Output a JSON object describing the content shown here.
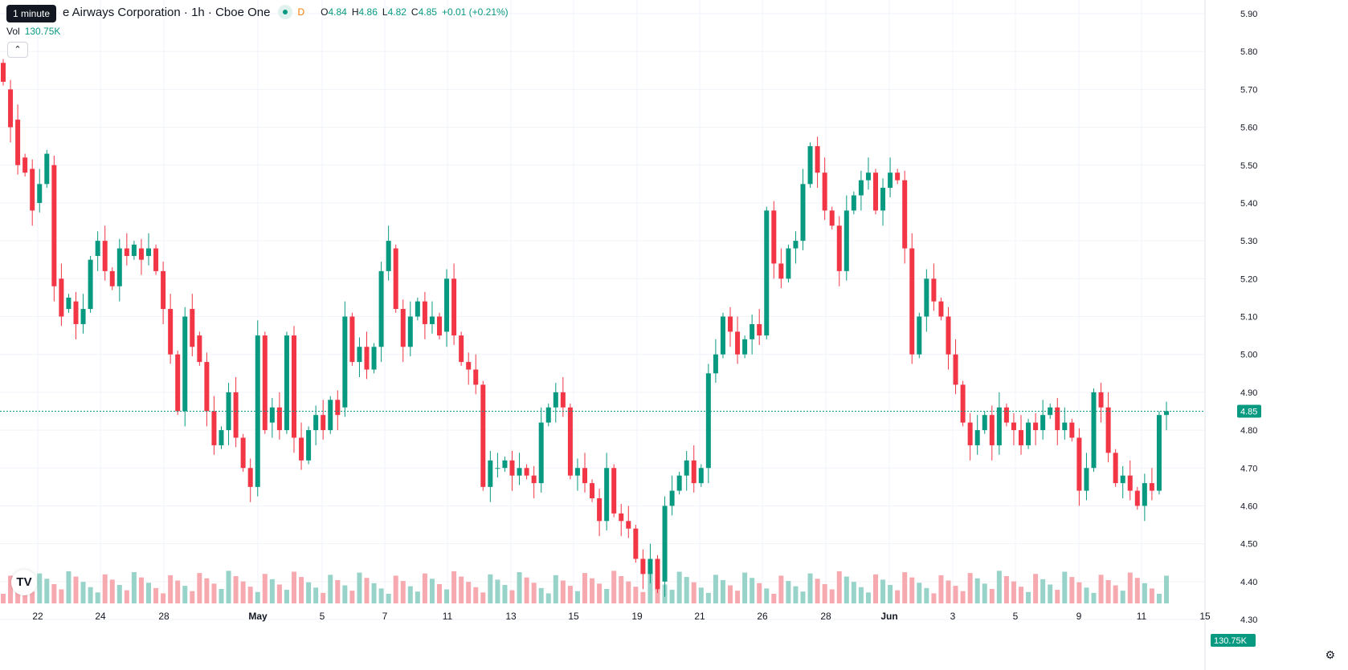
{
  "legend": {
    "title": "e Airways Corporation · 1h · Cboe One",
    "tooltip": "1 minute",
    "d_label": "D",
    "o_label": "O",
    "o_value": "4.84",
    "h_label": "H",
    "h_value": "4.86",
    "l_label": "L",
    "l_value": "4.82",
    "c_label": "C",
    "c_value": "4.85",
    "change": "+0.01 (+0.21%)"
  },
  "volume": {
    "label": "Vol",
    "value": "130.75K"
  },
  "collapse_icon": "chevron-up-icon",
  "logo_icon": "tradingview-logo-icon",
  "settings_icon": "gear-icon",
  "colors": {
    "up": "#089981",
    "down": "#f23645",
    "up_vol": "#98d3c9",
    "down_vol": "#f7a9b0",
    "grid": "#f0f3fa",
    "price_line": "#089981"
  },
  "chart_data": {
    "type": "candlestick",
    "y_axis": {
      "min": 4.3,
      "max": 5.9,
      "ticks": [
        "5.90",
        "5.80",
        "5.70",
        "5.60",
        "5.50",
        "5.40",
        "5.30",
        "5.20",
        "5.10",
        "5.00",
        "4.90",
        "4.80",
        "4.70",
        "4.60",
        "4.50",
        "4.40",
        "4.30"
      ]
    },
    "x_ticks": [
      {
        "label": "22",
        "bold": false
      },
      {
        "label": "24",
        "bold": false
      },
      {
        "label": "28",
        "bold": false
      },
      {
        "label": "May",
        "bold": true
      },
      {
        "label": "5",
        "bold": false
      },
      {
        "label": "7",
        "bold": false
      },
      {
        "label": "11",
        "bold": false
      },
      {
        "label": "13",
        "bold": false
      },
      {
        "label": "15",
        "bold": false
      },
      {
        "label": "19",
        "bold": false
      },
      {
        "label": "21",
        "bold": false
      },
      {
        "label": "26",
        "bold": false
      },
      {
        "label": "28",
        "bold": false
      },
      {
        "label": "Jun",
        "bold": true
      },
      {
        "label": "3",
        "bold": false
      },
      {
        "label": "5",
        "bold": false
      },
      {
        "label": "9",
        "bold": false
      },
      {
        "label": "11",
        "bold": false
      },
      {
        "label": "15",
        "bold": false
      }
    ],
    "current_price": "4.85",
    "current_volume": "130.75K",
    "segments": [
      [
        5.77,
        5.72
      ],
      [
        5.7,
        5.6
      ],
      [
        5.62,
        5.5
      ],
      [
        5.52,
        5.48
      ],
      [
        5.49,
        5.38
      ],
      [
        5.4,
        5.45
      ],
      [
        5.45,
        5.53
      ],
      [
        5.5,
        5.18
      ],
      [
        5.2,
        5.1
      ],
      [
        5.12,
        5.15
      ],
      [
        5.14,
        5.08
      ],
      [
        5.08,
        5.12
      ],
      [
        5.12,
        5.25
      ],
      [
        5.26,
        5.3
      ],
      [
        5.3,
        5.22
      ],
      [
        5.22,
        5.18
      ],
      [
        5.18,
        5.28
      ],
      [
        5.28,
        5.26
      ],
      [
        5.26,
        5.29
      ],
      [
        5.28,
        5.25
      ],
      [
        5.26,
        5.28
      ],
      [
        5.28,
        5.22
      ],
      [
        5.22,
        5.12
      ],
      [
        5.12,
        5.0
      ],
      [
        5.0,
        4.85
      ],
      [
        4.85,
        5.1
      ],
      [
        5.12,
        5.02
      ],
      [
        5.05,
        4.98
      ],
      [
        4.98,
        4.85
      ],
      [
        4.85,
        4.76
      ],
      [
        4.76,
        4.8
      ],
      [
        4.8,
        4.9
      ],
      [
        4.9,
        4.78
      ],
      [
        4.78,
        4.7
      ],
      [
        4.7,
        4.65
      ],
      [
        4.65,
        5.05
      ],
      [
        5.05,
        4.8
      ],
      [
        4.82,
        4.86
      ],
      [
        4.86,
        4.8
      ],
      [
        4.8,
        5.05
      ],
      [
        5.05,
        4.78
      ],
      [
        4.78,
        4.72
      ],
      [
        4.72,
        4.8
      ],
      [
        4.8,
        4.84
      ],
      [
        4.84,
        4.8
      ],
      [
        4.8,
        4.88
      ],
      [
        4.88,
        4.84
      ],
      [
        4.86,
        5.1
      ],
      [
        5.1,
        4.98
      ],
      [
        4.98,
        5.02
      ],
      [
        5.02,
        4.96
      ],
      [
        4.96,
        5.02
      ],
      [
        5.02,
        5.22
      ],
      [
        5.22,
        5.3
      ],
      [
        5.28,
        5.12
      ],
      [
        5.12,
        5.02
      ],
      [
        5.02,
        5.1
      ],
      [
        5.1,
        5.14
      ],
      [
        5.14,
        5.08
      ],
      [
        5.08,
        5.1
      ],
      [
        5.1,
        5.05
      ],
      [
        5.06,
        5.2
      ],
      [
        5.2,
        5.05
      ],
      [
        5.05,
        4.98
      ],
      [
        4.98,
        4.96
      ],
      [
        4.96,
        4.92
      ],
      [
        4.92,
        4.65
      ],
      [
        4.65,
        4.72
      ],
      [
        4.7,
        4.7
      ],
      [
        4.7,
        4.72
      ],
      [
        4.72,
        4.68
      ],
      [
        4.68,
        4.7
      ],
      [
        4.7,
        4.68
      ],
      [
        4.68,
        4.66
      ],
      [
        4.66,
        4.82
      ],
      [
        4.82,
        4.86
      ],
      [
        4.86,
        4.9
      ],
      [
        4.9,
        4.86
      ],
      [
        4.86,
        4.68
      ],
      [
        4.68,
        4.7
      ],
      [
        4.7,
        4.66
      ],
      [
        4.66,
        4.62
      ],
      [
        4.62,
        4.56
      ],
      [
        4.56,
        4.7
      ],
      [
        4.7,
        4.58
      ],
      [
        4.58,
        4.56
      ],
      [
        4.56,
        4.54
      ],
      [
        4.54,
        4.46
      ],
      [
        4.46,
        4.42
      ],
      [
        4.42,
        4.46
      ],
      [
        4.46,
        4.38
      ],
      [
        4.4,
        4.6
      ],
      [
        4.6,
        4.64
      ],
      [
        4.64,
        4.68
      ],
      [
        4.68,
        4.72
      ],
      [
        4.72,
        4.66
      ],
      [
        4.66,
        4.7
      ],
      [
        4.7,
        4.95
      ],
      [
        4.95,
        5.0
      ],
      [
        5.0,
        5.1
      ],
      [
        5.1,
        5.06
      ],
      [
        5.06,
        5.0
      ],
      [
        5.0,
        5.04
      ],
      [
        5.04,
        5.08
      ],
      [
        5.08,
        5.05
      ],
      [
        5.05,
        5.38
      ],
      [
        5.38,
        5.24
      ],
      [
        5.24,
        5.2
      ],
      [
        5.2,
        5.28
      ],
      [
        5.28,
        5.3
      ],
      [
        5.3,
        5.45
      ],
      [
        5.45,
        5.55
      ],
      [
        5.55,
        5.48
      ],
      [
        5.48,
        5.38
      ],
      [
        5.38,
        5.34
      ],
      [
        5.34,
        5.22
      ],
      [
        5.22,
        5.38
      ],
      [
        5.38,
        5.42
      ],
      [
        5.42,
        5.46
      ],
      [
        5.46,
        5.48
      ],
      [
        5.48,
        5.38
      ],
      [
        5.38,
        5.44
      ],
      [
        5.44,
        5.48
      ],
      [
        5.48,
        5.46
      ],
      [
        5.46,
        5.28
      ],
      [
        5.28,
        5.0
      ],
      [
        5.0,
        5.1
      ],
      [
        5.1,
        5.2
      ],
      [
        5.2,
        5.14
      ],
      [
        5.14,
        5.1
      ],
      [
        5.1,
        5.0
      ],
      [
        5.0,
        4.92
      ],
      [
        4.92,
        4.82
      ],
      [
        4.82,
        4.76
      ],
      [
        4.76,
        4.8
      ],
      [
        4.8,
        4.84
      ],
      [
        4.84,
        4.76
      ],
      [
        4.76,
        4.86
      ],
      [
        4.86,
        4.82
      ],
      [
        4.82,
        4.8
      ],
      [
        4.8,
        4.76
      ],
      [
        4.76,
        4.82
      ],
      [
        4.82,
        4.8
      ],
      [
        4.8,
        4.84
      ],
      [
        4.84,
        4.86
      ],
      [
        4.86,
        4.8
      ],
      [
        4.8,
        4.82
      ],
      [
        4.82,
        4.78
      ],
      [
        4.78,
        4.64
      ],
      [
        4.64,
        4.7
      ],
      [
        4.7,
        4.9
      ],
      [
        4.9,
        4.86
      ],
      [
        4.86,
        4.74
      ],
      [
        4.74,
        4.66
      ],
      [
        4.66,
        4.68
      ],
      [
        4.68,
        4.64
      ],
      [
        4.64,
        4.6
      ],
      [
        4.6,
        4.66
      ],
      [
        4.66,
        4.64
      ],
      [
        4.64,
        4.84
      ],
      [
        4.84,
        4.85
      ]
    ]
  }
}
